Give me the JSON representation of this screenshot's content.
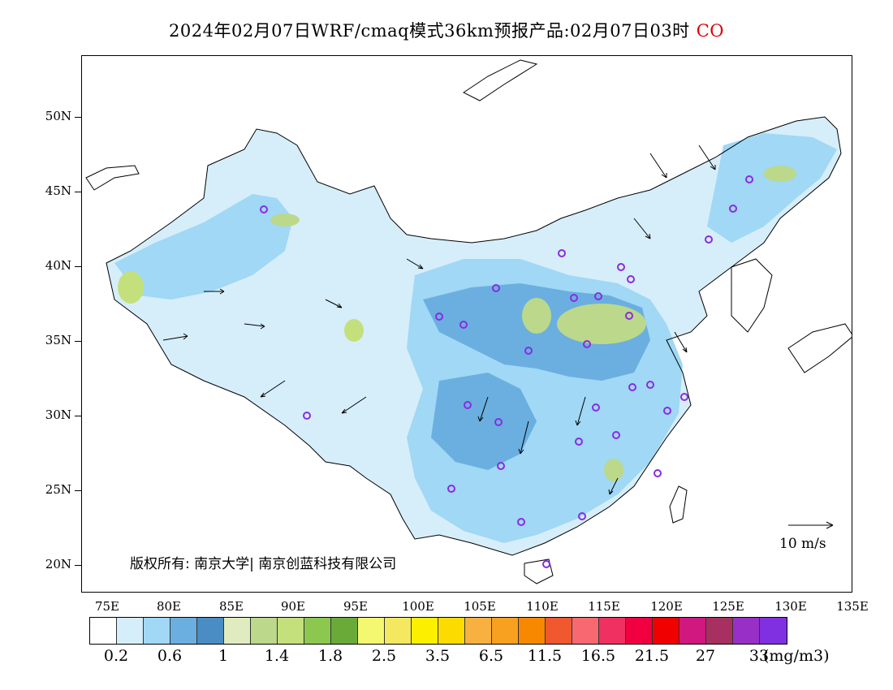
{
  "title": {
    "text": "2024年02月07日WRF/cmaq模式36km预报产品:02月07日03时",
    "pollutant": "CO",
    "pollutant_color": "#e00000"
  },
  "axes": {
    "y_ticks": [
      "50N",
      "45N",
      "40N",
      "35N",
      "30N",
      "25N",
      "20N"
    ],
    "x_ticks": [
      "75E",
      "80E",
      "85E",
      "90E",
      "95E",
      "100E",
      "105E",
      "110E",
      "115E",
      "120E",
      "125E",
      "130E",
      "135E"
    ]
  },
  "copyright": "版权所有: 南京大学| 南京创蓝科技有限公司",
  "wind_reference": "10 m/s",
  "legend": {
    "colors": [
      "#ffffff",
      "#d6eefa",
      "#a0d8f5",
      "#6aafe0",
      "#4a8cc4",
      "#e0ecc0",
      "#bcd88a",
      "#c4e07c",
      "#8cc850",
      "#6aaa38",
      "#f4f870",
      "#f4e860",
      "#fcf000",
      "#fcdc00",
      "#f8b040",
      "#f8a020",
      "#f88800",
      "#f05830",
      "#f86870",
      "#f03060",
      "#f00040",
      "#f00000",
      "#d01880",
      "#a83060",
      "#9830c8",
      "#8030e0"
    ],
    "labels": [
      "0.2",
      "0.6",
      "1",
      "1.4",
      "1.8",
      "2.5",
      "3.5",
      "6.5",
      "11.5",
      "16.5",
      "21.5",
      "27",
      "33"
    ],
    "unit": "(mg/m3)"
  }
}
